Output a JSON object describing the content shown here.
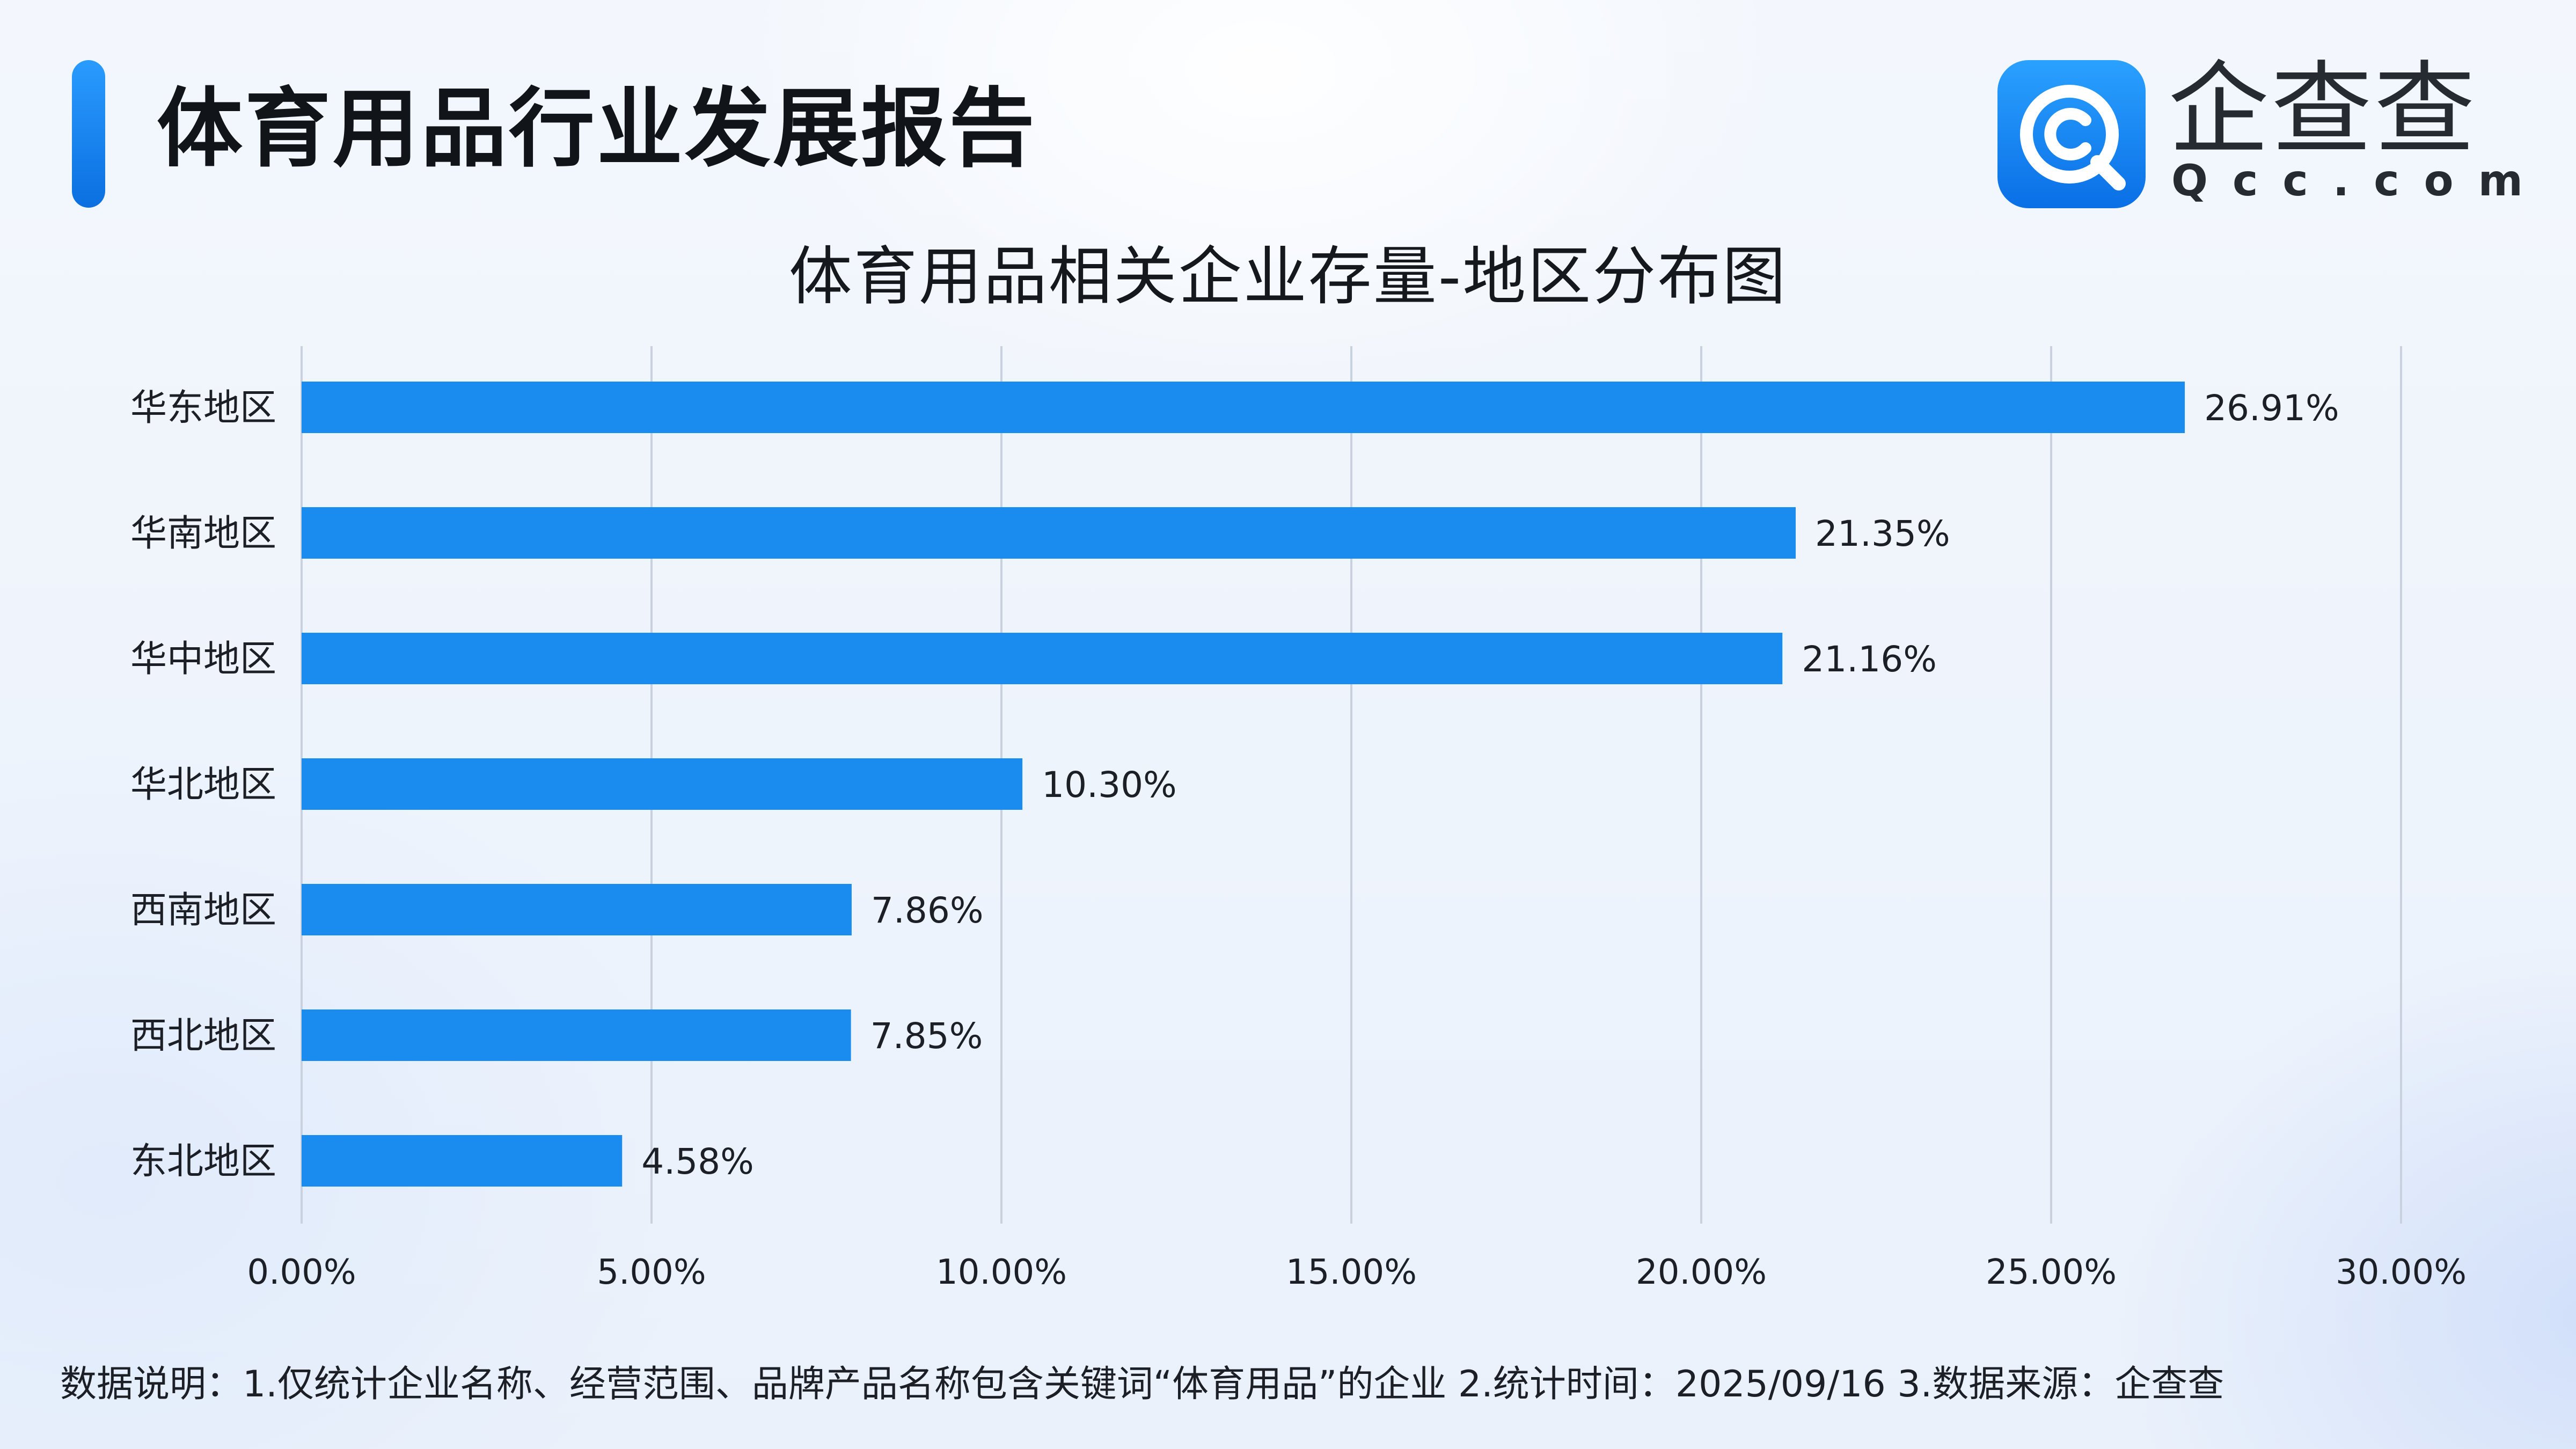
{
  "header": {
    "report_title": "体育用品行业发展报告",
    "brand_name": "企查查",
    "brand_domain": "Qcc.com"
  },
  "colors": {
    "accent": "#1a8cf0",
    "bar": "#1a8cf0",
    "grid": "#c9d1de",
    "text": "#1c2026"
  },
  "icons": {
    "logo": "qcc-logo-icon"
  },
  "chart_data": {
    "type": "bar",
    "orientation": "horizontal",
    "title": "体育用品相关企业存量-地区分布图",
    "categories": [
      "华东地区",
      "华南地区",
      "华中地区",
      "华北地区",
      "西南地区",
      "西北地区",
      "东北地区"
    ],
    "values": [
      26.91,
      21.35,
      21.16,
      10.3,
      7.86,
      7.85,
      4.58
    ],
    "value_labels": [
      "26.91%",
      "21.35%",
      "21.16%",
      "10.30%",
      "7.86%",
      "7.85%",
      "4.58%"
    ],
    "xlim": [
      0,
      30
    ],
    "x_ticks": [
      0,
      5,
      10,
      15,
      20,
      25,
      30
    ],
    "x_tick_labels": [
      "0.00%",
      "5.00%",
      "10.00%",
      "15.00%",
      "20.00%",
      "25.00%",
      "30.00%"
    ],
    "grid": "vertical",
    "legend": "none"
  },
  "footnote": "数据说明：1.仅统计企业名称、经营范围、品牌产品名称包含关键词“体育用品”的企业   2.统计时间：2025/09/16    3.数据来源：企查查"
}
